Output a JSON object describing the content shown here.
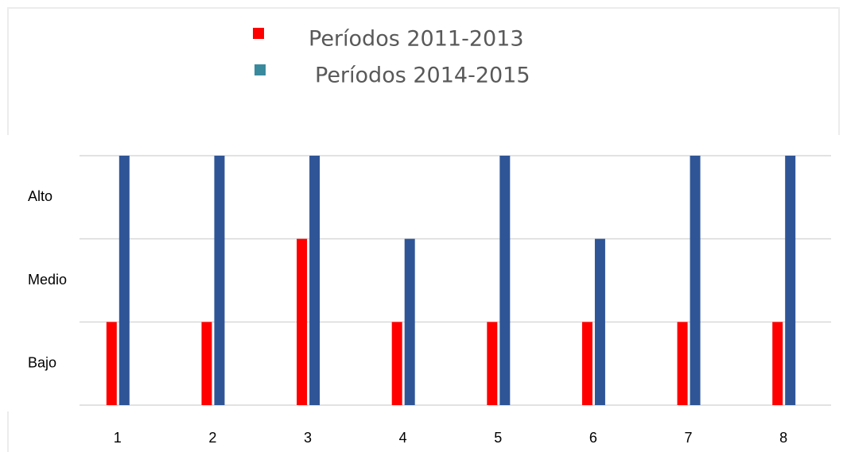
{
  "chart_data": {
    "type": "bar",
    "categories": [
      "1",
      "2",
      "3",
      "4",
      "5",
      "6",
      "7",
      "8"
    ],
    "series": [
      {
        "name": "Períodos 2011-2013",
        "color": "#ff0000",
        "legend_color": "#ff0000",
        "values": [
          1,
          1,
          2,
          1,
          1,
          1,
          1,
          1
        ]
      },
      {
        "name": "Períodos 2014-2015",
        "color": "#2f5597",
        "legend_color": "#3a8a9e",
        "values": [
          3,
          3,
          3,
          2,
          3,
          2,
          3,
          3
        ]
      }
    ],
    "ylim": [
      0,
      3
    ],
    "yticks": [
      {
        "value": 0.5,
        "label": "Bajo"
      },
      {
        "value": 1.5,
        "label": "Medio"
      },
      {
        "value": 2.5,
        "label": "Alto"
      }
    ],
    "ygrid": [
      0,
      1,
      2,
      3
    ],
    "grid": true,
    "legend": "top"
  }
}
